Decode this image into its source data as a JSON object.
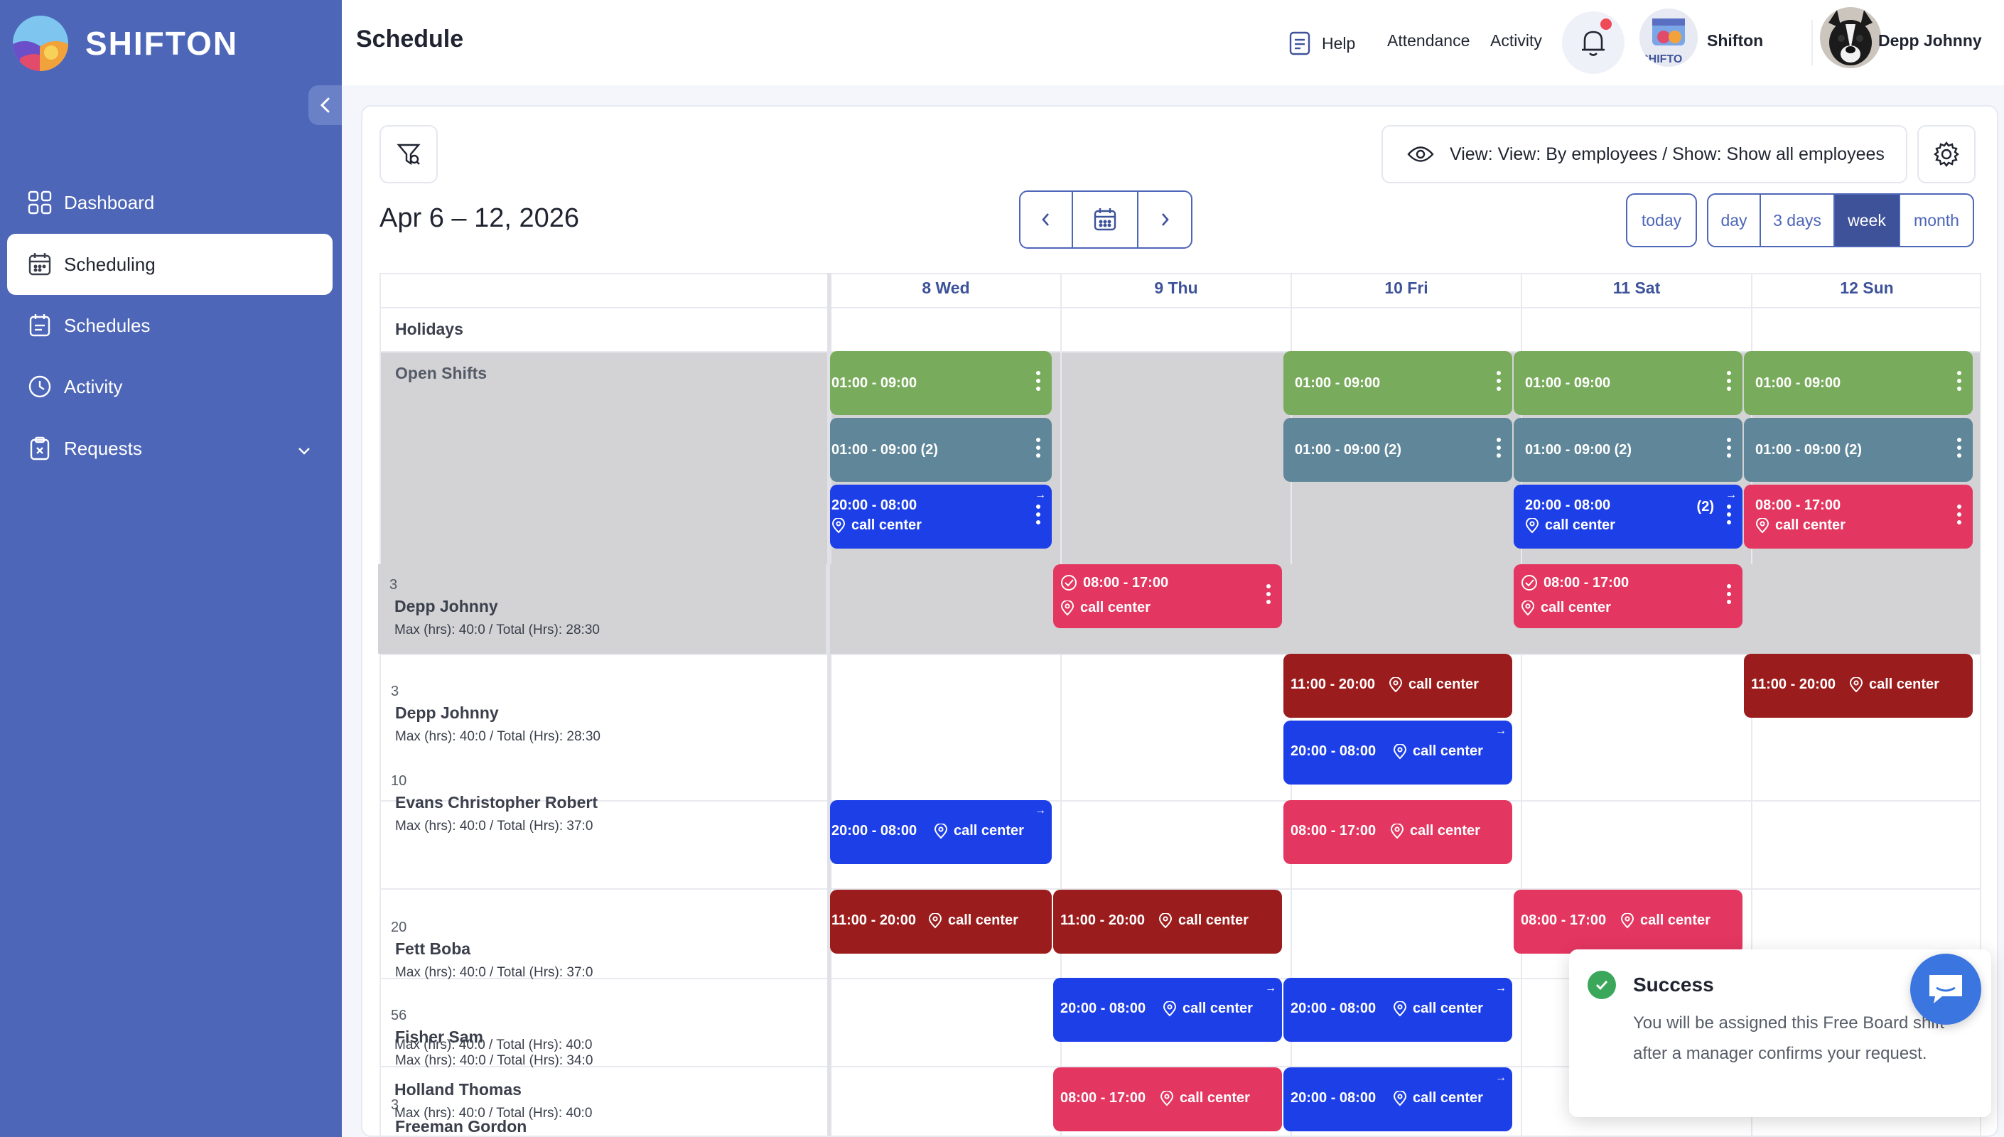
{
  "app": {
    "name": "SHIFTON"
  },
  "sidebar": {
    "items": [
      {
        "label": "Dashboard",
        "icon": "dashboard-grid-icon"
      },
      {
        "label": "Scheduling",
        "icon": "calendar-icon",
        "active": true
      },
      {
        "label": "Schedules",
        "icon": "schedule-list-icon"
      },
      {
        "label": "Activity",
        "icon": "clock-icon"
      },
      {
        "label": "Requests",
        "icon": "request-clipboard-icon"
      }
    ]
  },
  "header": {
    "title": "Schedule",
    "help": "Help",
    "attendance": "Attendance",
    "activity": "Activity",
    "company": "Shifton",
    "user": "Depp Johnny"
  },
  "toolbar": {
    "view_text": "View: View: By employees / Show: Show all employees",
    "date_range": "Apr 6 – 12, 2026",
    "today": "today",
    "ranges": [
      "day",
      "3 days",
      "week",
      "month"
    ],
    "active_range": "week"
  },
  "calendar": {
    "days": [
      "8 Wed",
      "9 Thu",
      "10 Fri",
      "11 Sat",
      "12 Sun"
    ],
    "holidays_label": "Holidays",
    "open_shifts_label": "Open Shifts",
    "employees": [
      {
        "count": "3",
        "name": "Depp Johnny",
        "hours": "Max (hrs): 40:0 / Total (Hrs): 28:30"
      },
      {
        "count": "10",
        "name": "Evans Christopher Robert",
        "hours": "Max (hrs): 40:0 / Total (Hrs): 37:0"
      },
      {
        "count": "20",
        "name": "Fett Boba",
        "hours": "Max (hrs): 40:0 / Total (Hrs): 37:0"
      },
      {
        "count": "56",
        "name": "Fisher Sam",
        "hours": "Max (hrs): 40:0 / Total (Hrs): 34:0"
      },
      {
        "count": "3",
        "name": "Freeman Gordon",
        "hours": "Max (hrs): 40:0 / Total (Hrs): 40:0"
      },
      {
        "count": "",
        "name": "Holland Thomas",
        "hours": "Max (hrs): 40:0 / Total (Hrs): 40:0"
      }
    ],
    "shift_texts": {
      "t0109": "01:00 - 09:00",
      "t0109x2": "01:00 - 09:00 (2)",
      "t2008": "20:00 - 08:00",
      "t0817": "08:00 - 17:00",
      "t1120": "11:00 - 20:00",
      "cnt2": "(2)",
      "location": "call center"
    },
    "colors": {
      "green": "#79ab5c",
      "slate": "#5f8699",
      "blue": "#1d3fe8",
      "pink": "#e33660",
      "maroon": "#9b1c1c"
    }
  },
  "toast": {
    "title": "Success",
    "message": "You will be assigned this Free Board shift after a manager confirms your request."
  }
}
